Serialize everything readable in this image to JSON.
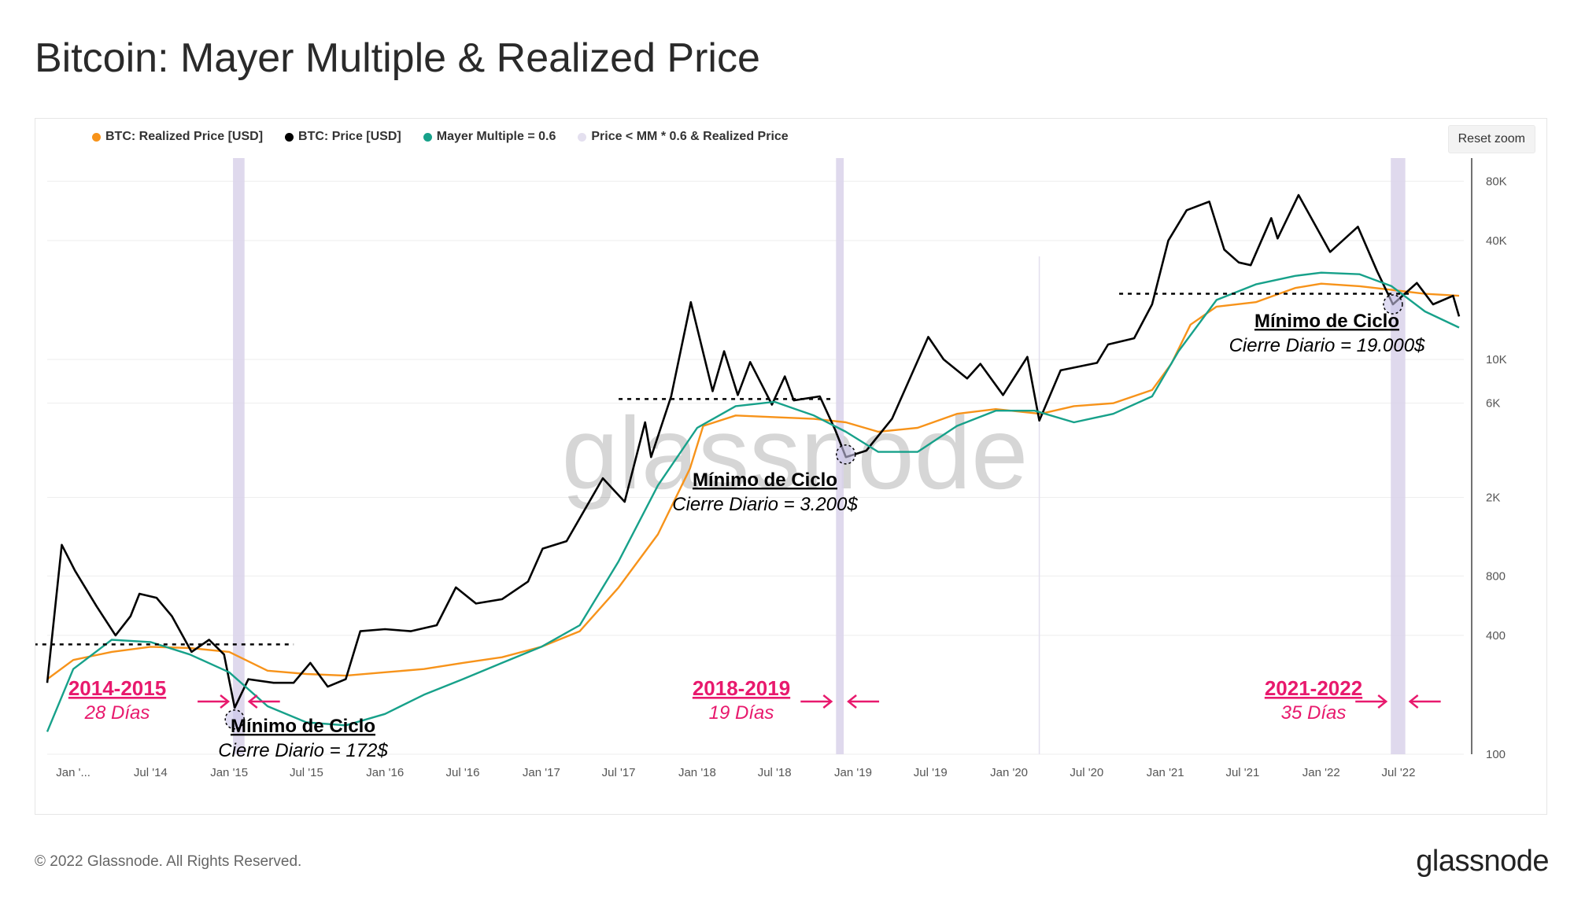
{
  "title": "Bitcoin: Mayer Multiple & Realized Price",
  "reset_zoom_label": "Reset zoom",
  "footer": {
    "copyright": "© 2022 Glassnode. All Rights Reserved.",
    "logo": "glassnode"
  },
  "watermark": "glassnode",
  "colors": {
    "realized": "#f7931a",
    "price": "#000000",
    "mayer": "#17a18a",
    "band": "#d9d2ea",
    "accent": "#e8196d",
    "grid": "#eeeeee"
  },
  "chart_data": {
    "type": "line",
    "y_scale": "log",
    "ylim": [
      100,
      100000
    ],
    "xlim": [
      "2013-11-01",
      "2022-12-01"
    ],
    "y_ticks": [
      {
        "value": 100,
        "label": "100"
      },
      {
        "value": 400,
        "label": "400"
      },
      {
        "value": 800,
        "label": "800"
      },
      {
        "value": 2000,
        "label": "2K"
      },
      {
        "value": 6000,
        "label": "6K"
      },
      {
        "value": 10000,
        "label": "10K"
      },
      {
        "value": 40000,
        "label": "40K"
      },
      {
        "value": 80000,
        "label": "80K"
      }
    ],
    "x_ticks": [
      {
        "date": "2014-01-01",
        "label": "Jan '..."
      },
      {
        "date": "2014-07-01",
        "label": "Jul '14"
      },
      {
        "date": "2015-01-01",
        "label": "Jan '15"
      },
      {
        "date": "2015-07-01",
        "label": "Jul '15"
      },
      {
        "date": "2016-01-01",
        "label": "Jan '16"
      },
      {
        "date": "2016-07-01",
        "label": "Jul '16"
      },
      {
        "date": "2017-01-01",
        "label": "Jan '17"
      },
      {
        "date": "2017-07-01",
        "label": "Jul '17"
      },
      {
        "date": "2018-01-01",
        "label": "Jan '18"
      },
      {
        "date": "2018-07-01",
        "label": "Jul '18"
      },
      {
        "date": "2019-01-01",
        "label": "Jan '19"
      },
      {
        "date": "2019-07-01",
        "label": "Jul '19"
      },
      {
        "date": "2020-01-01",
        "label": "Jan '20"
      },
      {
        "date": "2020-07-01",
        "label": "Jul '20"
      },
      {
        "date": "2021-01-01",
        "label": "Jan '21"
      },
      {
        "date": "2021-07-01",
        "label": "Jul '21"
      },
      {
        "date": "2022-01-01",
        "label": "Jan '22"
      },
      {
        "date": "2022-07-01",
        "label": "Jul '22"
      }
    ],
    "series": [
      {
        "name": "BTC: Realized Price [USD]",
        "key": "realized",
        "points": [
          [
            "2013-11-01",
            240
          ],
          [
            "2014-01-01",
            300
          ],
          [
            "2014-04-01",
            330
          ],
          [
            "2014-07-01",
            350
          ],
          [
            "2014-10-01",
            345
          ],
          [
            "2015-01-01",
            330
          ],
          [
            "2015-04-01",
            265
          ],
          [
            "2015-07-01",
            255
          ],
          [
            "2015-10-01",
            250
          ],
          [
            "2016-01-01",
            260
          ],
          [
            "2016-04-01",
            270
          ],
          [
            "2016-07-01",
            290
          ],
          [
            "2016-10-01",
            310
          ],
          [
            "2017-01-01",
            350
          ],
          [
            "2017-04-01",
            420
          ],
          [
            "2017-07-01",
            700
          ],
          [
            "2017-10-01",
            1300
          ],
          [
            "2017-12-15",
            2800
          ],
          [
            "2018-01-15",
            4600
          ],
          [
            "2018-04-01",
            5200
          ],
          [
            "2018-07-01",
            5100
          ],
          [
            "2018-10-01",
            5000
          ],
          [
            "2018-12-15",
            4800
          ],
          [
            "2019-03-01",
            4300
          ],
          [
            "2019-06-01",
            4500
          ],
          [
            "2019-09-01",
            5300
          ],
          [
            "2019-12-01",
            5600
          ],
          [
            "2020-03-15",
            5300
          ],
          [
            "2020-06-01",
            5800
          ],
          [
            "2020-09-01",
            6000
          ],
          [
            "2020-12-01",
            7000
          ],
          [
            "2021-01-15",
            9500
          ],
          [
            "2021-03-01",
            15000
          ],
          [
            "2021-05-01",
            18500
          ],
          [
            "2021-08-01",
            19500
          ],
          [
            "2021-11-01",
            23000
          ],
          [
            "2022-01-01",
            24200
          ],
          [
            "2022-04-01",
            23500
          ],
          [
            "2022-06-15",
            22500
          ],
          [
            "2022-09-01",
            21500
          ],
          [
            "2022-11-20",
            21000
          ]
        ]
      },
      {
        "name": "BTC: Price [USD]",
        "key": "price",
        "points": [
          [
            "2013-11-01",
            230
          ],
          [
            "2013-12-05",
            1150
          ],
          [
            "2014-01-05",
            850
          ],
          [
            "2014-02-25",
            560
          ],
          [
            "2014-04-10",
            400
          ],
          [
            "2014-05-15",
            500
          ],
          [
            "2014-06-05",
            650
          ],
          [
            "2014-07-15",
            620
          ],
          [
            "2014-08-20",
            500
          ],
          [
            "2014-10-05",
            330
          ],
          [
            "2014-11-15",
            380
          ],
          [
            "2014-12-20",
            320
          ],
          [
            "2015-01-14",
            172
          ],
          [
            "2015-02-15",
            240
          ],
          [
            "2015-04-15",
            230
          ],
          [
            "2015-06-01",
            230
          ],
          [
            "2015-07-10",
            290
          ],
          [
            "2015-08-20",
            220
          ],
          [
            "2015-10-01",
            240
          ],
          [
            "2015-11-04",
            420
          ],
          [
            "2016-01-01",
            430
          ],
          [
            "2016-03-01",
            420
          ],
          [
            "2016-05-01",
            450
          ],
          [
            "2016-06-15",
            700
          ],
          [
            "2016-08-01",
            580
          ],
          [
            "2016-10-01",
            610
          ],
          [
            "2016-12-01",
            750
          ],
          [
            "2017-01-04",
            1100
          ],
          [
            "2017-03-01",
            1200
          ],
          [
            "2017-05-25",
            2500
          ],
          [
            "2017-07-15",
            1900
          ],
          [
            "2017-09-01",
            4800
          ],
          [
            "2017-09-15",
            3200
          ],
          [
            "2017-11-01",
            6500
          ],
          [
            "2017-12-17",
            19500
          ],
          [
            "2018-02-06",
            6900
          ],
          [
            "2018-03-05",
            11000
          ],
          [
            "2018-04-06",
            6600
          ],
          [
            "2018-05-05",
            9700
          ],
          [
            "2018-06-25",
            5900
          ],
          [
            "2018-07-25",
            8200
          ],
          [
            "2018-08-15",
            6200
          ],
          [
            "2018-10-15",
            6500
          ],
          [
            "2018-11-20",
            4400
          ],
          [
            "2018-12-15",
            3200
          ],
          [
            "2019-02-01",
            3450
          ],
          [
            "2019-04-02",
            5000
          ],
          [
            "2019-06-26",
            13000
          ],
          [
            "2019-08-01",
            10000
          ],
          [
            "2019-09-25",
            8000
          ],
          [
            "2019-10-26",
            9500
          ],
          [
            "2019-12-18",
            6600
          ],
          [
            "2020-02-13",
            10300
          ],
          [
            "2020-03-12",
            4900
          ],
          [
            "2020-05-01",
            8800
          ],
          [
            "2020-07-25",
            9600
          ],
          [
            "2020-08-20",
            11900
          ],
          [
            "2020-10-20",
            12800
          ],
          [
            "2020-12-01",
            19000
          ],
          [
            "2021-01-08",
            40000
          ],
          [
            "2021-02-20",
            57000
          ],
          [
            "2021-04-14",
            63000
          ],
          [
            "2021-05-19",
            36000
          ],
          [
            "2021-06-22",
            31000
          ],
          [
            "2021-07-20",
            30000
          ],
          [
            "2021-09-06",
            52000
          ],
          [
            "2021-09-21",
            41000
          ],
          [
            "2021-11-09",
            68000
          ],
          [
            "2022-01-22",
            35000
          ],
          [
            "2022-03-28",
            47000
          ],
          [
            "2022-05-12",
            28000
          ],
          [
            "2022-06-18",
            19000
          ],
          [
            "2022-08-13",
            24400
          ],
          [
            "2022-09-20",
            19000
          ],
          [
            "2022-11-06",
            21000
          ],
          [
            "2022-11-20",
            16500
          ]
        ]
      },
      {
        "name": "Mayer Multiple = 0.6",
        "key": "mayer",
        "points": [
          [
            "2013-11-01",
            130
          ],
          [
            "2014-01-01",
            270
          ],
          [
            "2014-04-01",
            380
          ],
          [
            "2014-07-01",
            370
          ],
          [
            "2014-10-01",
            320
          ],
          [
            "2015-01-01",
            260
          ],
          [
            "2015-04-01",
            175
          ],
          [
            "2015-07-01",
            145
          ],
          [
            "2015-10-01",
            140
          ],
          [
            "2016-01-01",
            160
          ],
          [
            "2016-04-01",
            200
          ],
          [
            "2016-07-01",
            240
          ],
          [
            "2016-10-01",
            290
          ],
          [
            "2017-01-01",
            350
          ],
          [
            "2017-04-01",
            450
          ],
          [
            "2017-07-01",
            950
          ],
          [
            "2017-10-01",
            2300
          ],
          [
            "2018-01-01",
            4500
          ],
          [
            "2018-04-01",
            5800
          ],
          [
            "2018-07-01",
            6100
          ],
          [
            "2018-10-01",
            5200
          ],
          [
            "2018-12-15",
            4300
          ],
          [
            "2019-03-01",
            3400
          ],
          [
            "2019-06-01",
            3400
          ],
          [
            "2019-09-01",
            4600
          ],
          [
            "2019-12-01",
            5500
          ],
          [
            "2020-03-01",
            5500
          ],
          [
            "2020-06-01",
            4800
          ],
          [
            "2020-09-01",
            5300
          ],
          [
            "2020-12-01",
            6500
          ],
          [
            "2021-02-01",
            11000
          ],
          [
            "2021-05-01",
            20000
          ],
          [
            "2021-08-01",
            24000
          ],
          [
            "2021-11-01",
            26500
          ],
          [
            "2022-01-01",
            27500
          ],
          [
            "2022-04-01",
            27000
          ],
          [
            "2022-06-15",
            23500
          ],
          [
            "2022-09-01",
            17500
          ],
          [
            "2022-11-20",
            14500
          ]
        ]
      }
    ],
    "bands": {
      "name": "Price < MM * 0.6 & Realized Price",
      "ranges": [
        [
          "2015-01-10",
          "2015-02-06"
        ],
        [
          "2018-11-22",
          "2018-12-10"
        ],
        [
          "2022-06-13",
          "2022-07-17"
        ]
      ]
    },
    "thin_markers": [
      "2020-03-12"
    ],
    "support_lines": [
      {
        "from": "2013-09-10",
        "to": "2015-06-01",
        "value": 360
      },
      {
        "from": "2017-07-01",
        "to": "2018-11-10",
        "value": 6300
      },
      {
        "from": "2020-09-15",
        "to": "2022-08-01",
        "value": 21500
      }
    ],
    "circles": [
      {
        "date": "2015-01-14",
        "value": 150
      },
      {
        "date": "2018-12-15",
        "value": 3300
      },
      {
        "date": "2022-06-18",
        "value": 19000
      }
    ],
    "annotations": {
      "cycles": [
        {
          "title": "Mínimo de Ciclo",
          "subtitle": "Cierre Diario = 172$"
        },
        {
          "title": "Mínimo de Ciclo",
          "subtitle": "Cierre Diario = 3.200$"
        },
        {
          "title": "Mínimo de Ciclo",
          "subtitle": "Cierre Diario = 19.000$"
        }
      ],
      "periods": [
        {
          "years": "2014-2015",
          "days": "28 Días"
        },
        {
          "years": "2018-2019",
          "days": "19 Días"
        },
        {
          "years": "2021-2022",
          "days": "35 Días"
        }
      ]
    }
  }
}
